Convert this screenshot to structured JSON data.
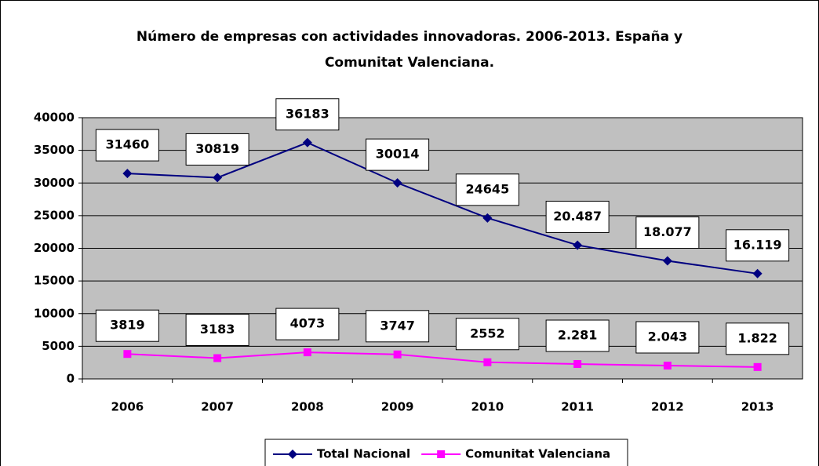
{
  "chart_data": {
    "type": "line",
    "title": [
      "Número de empresas con actividades innovadoras. 2006-2013. España y",
      "Comunitat Valenciana."
    ],
    "categories": [
      "2006",
      "2007",
      "2008",
      "2009",
      "2010",
      "2011",
      "2012",
      "2013"
    ],
    "series": [
      {
        "name": "Total Nacional",
        "color": "#000080",
        "marker": "diamond",
        "values": [
          31460,
          30819,
          36183,
          30014,
          24645,
          20487,
          18077,
          16119
        ],
        "value_labels": [
          "31460",
          "30819",
          "36183",
          "30014",
          "24645",
          "20.487",
          "18.077",
          "16.119"
        ]
      },
      {
        "name": "Comunitat Valenciana",
        "color": "#ff00ff",
        "marker": "square",
        "values": [
          3819,
          3183,
          4073,
          3747,
          2552,
          2281,
          2043,
          1822
        ],
        "value_labels": [
          "3819",
          "3183",
          "4073",
          "3747",
          "2552",
          "2.281",
          "2.043",
          "1.822"
        ]
      }
    ],
    "ylim": [
      0,
      40000
    ],
    "yticks": [
      0,
      5000,
      10000,
      15000,
      20000,
      25000,
      30000,
      35000,
      40000
    ],
    "grid": true,
    "legend": "bottom",
    "plot_background": "#c0c0c0"
  }
}
